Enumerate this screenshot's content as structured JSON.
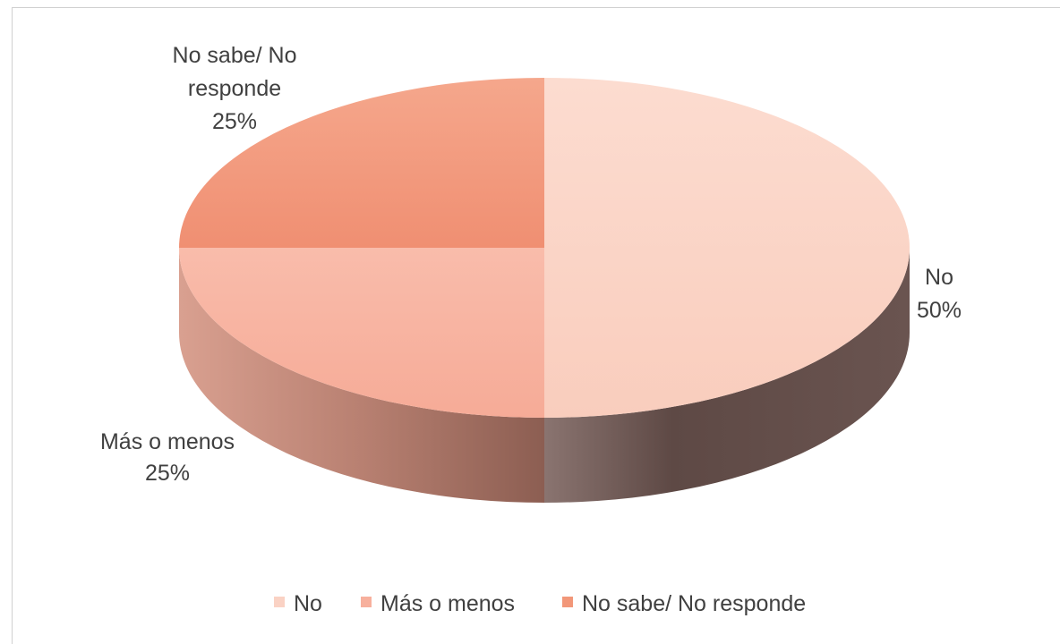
{
  "chart_data": {
    "type": "pie",
    "variant": "3d",
    "categories": [
      "No",
      "Más o menos",
      "No sabe/ No responde"
    ],
    "values": [
      50,
      25,
      25
    ],
    "unit": "%",
    "colors": [
      "#fad2c4",
      "#f7b09d",
      "#f29779"
    ],
    "side_colors": [
      "#6c5450",
      "#c0887a",
      "#c0887a"
    ],
    "data_labels": [
      {
        "name": "No",
        "value": "50%"
      },
      {
        "name_lines": [
          "Más o menos"
        ],
        "value": "25%"
      },
      {
        "name_lines": [
          "No sabe/ No",
          "responde"
        ],
        "value": "25%"
      }
    ],
    "legend": {
      "position": "bottom",
      "entries": [
        "No",
        "Más o menos",
        "No sabe/ No responde"
      ]
    },
    "title": ""
  }
}
